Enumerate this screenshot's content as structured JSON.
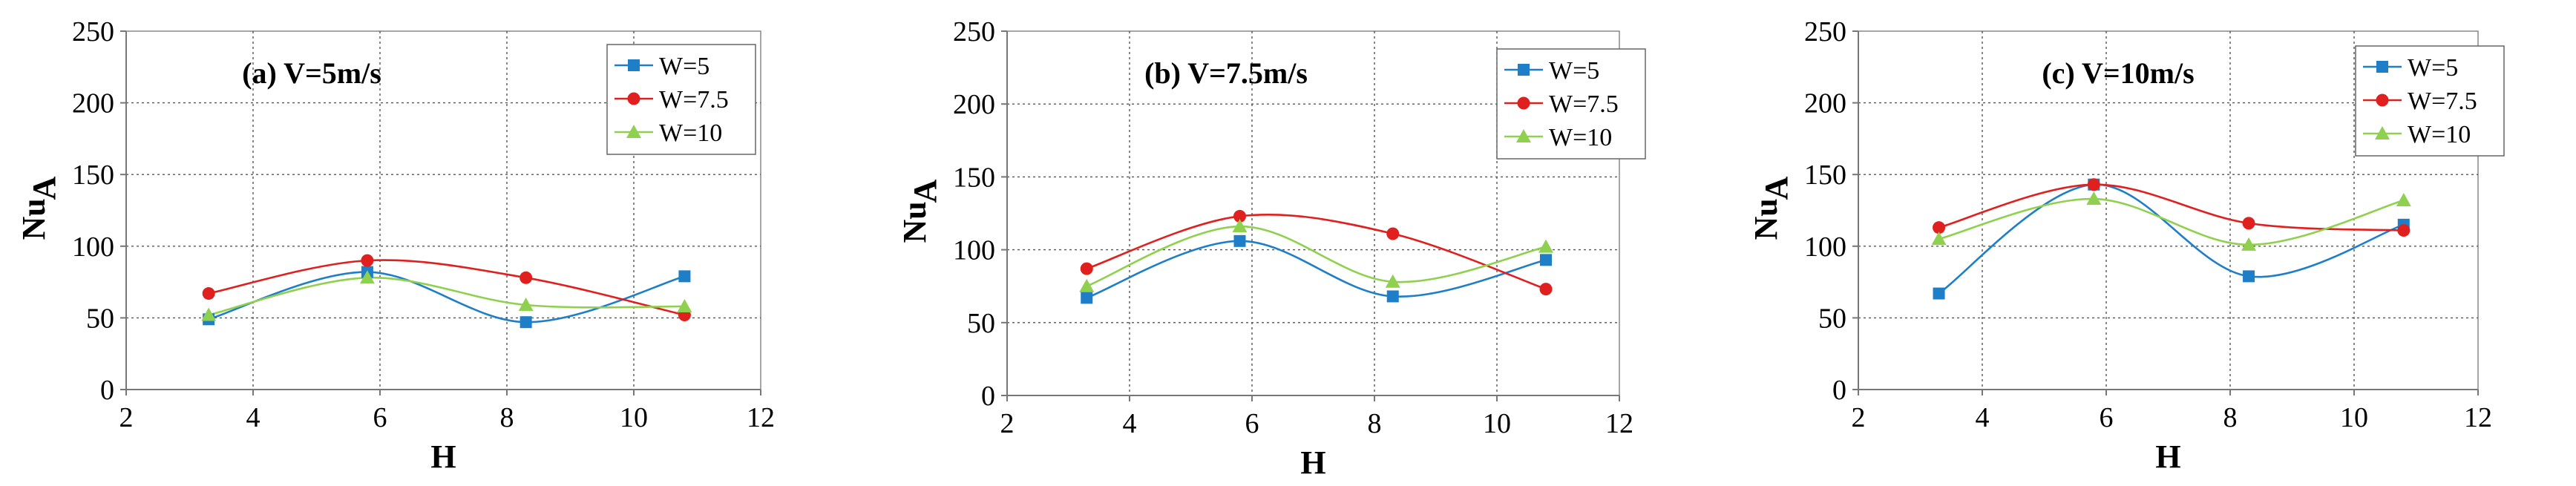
{
  "colors": {
    "W5": "#1f7ec8",
    "W7_5": "#e0201e",
    "W10": "#8fd14f"
  },
  "chart_data": [
    {
      "type": "line",
      "title": "(a) V=5m/s",
      "xlabel": "H",
      "ylabel_main": "Nu",
      "ylabel_sub": "A",
      "xlim": [
        2,
        12
      ],
      "ylim": [
        0,
        250
      ],
      "xticks": [
        "2",
        "4",
        "6",
        "8",
        "10",
        "12"
      ],
      "yticks": [
        "0",
        "50",
        "100",
        "150",
        "200",
        "250"
      ],
      "grid": true,
      "legend_position": "top-right",
      "x": [
        3.3,
        5.8,
        8.3,
        10.8
      ],
      "series": [
        {
          "name": "W=5",
          "marker": "square",
          "values": [
            49,
            82,
            47,
            79
          ]
        },
        {
          "name": "W=7.5",
          "marker": "circle",
          "values": [
            67,
            90,
            78,
            52
          ]
        },
        {
          "name": "W=10",
          "marker": "triangle",
          "values": [
            52,
            78,
            59,
            58
          ]
        }
      ]
    },
    {
      "type": "line",
      "title": "(b) V=7.5m/s",
      "xlabel": "H",
      "ylabel_main": "Nu",
      "ylabel_sub": "A",
      "xlim": [
        2,
        12
      ],
      "ylim": [
        0,
        250
      ],
      "xticks": [
        "2",
        "4",
        "6",
        "8",
        "10",
        "12"
      ],
      "yticks": [
        "0",
        "50",
        "100",
        "150",
        "200",
        "250"
      ],
      "grid": true,
      "legend_position": "top-right",
      "x": [
        3.3,
        5.8,
        8.3,
        10.8
      ],
      "series": [
        {
          "name": "W=5",
          "marker": "square",
          "values": [
            67,
            106,
            68,
            93
          ]
        },
        {
          "name": "W=7.5",
          "marker": "circle",
          "values": [
            87,
            123,
            111,
            73
          ]
        },
        {
          "name": "W=10",
          "marker": "triangle",
          "values": [
            75,
            116,
            78,
            102
          ]
        }
      ]
    },
    {
      "type": "line",
      "title": "(c) V=10m/s",
      "xlabel": "H",
      "ylabel_main": "Nu",
      "ylabel_sub": "A",
      "xlim": [
        2,
        12
      ],
      "ylim": [
        0,
        250
      ],
      "xticks": [
        "2",
        "4",
        "6",
        "8",
        "10",
        "12"
      ],
      "yticks": [
        "0",
        "50",
        "100",
        "150",
        "200",
        "250"
      ],
      "grid": true,
      "legend_position": "top-right",
      "x": [
        3.3,
        5.8,
        8.3,
        10.8
      ],
      "series": [
        {
          "name": "W=5",
          "marker": "square",
          "values": [
            67,
            143,
            79,
            115
          ]
        },
        {
          "name": "W=7.5",
          "marker": "circle",
          "values": [
            113,
            143,
            116,
            111
          ]
        },
        {
          "name": "W=10",
          "marker": "triangle",
          "values": [
            105,
            133,
            101,
            132
          ]
        }
      ]
    }
  ]
}
